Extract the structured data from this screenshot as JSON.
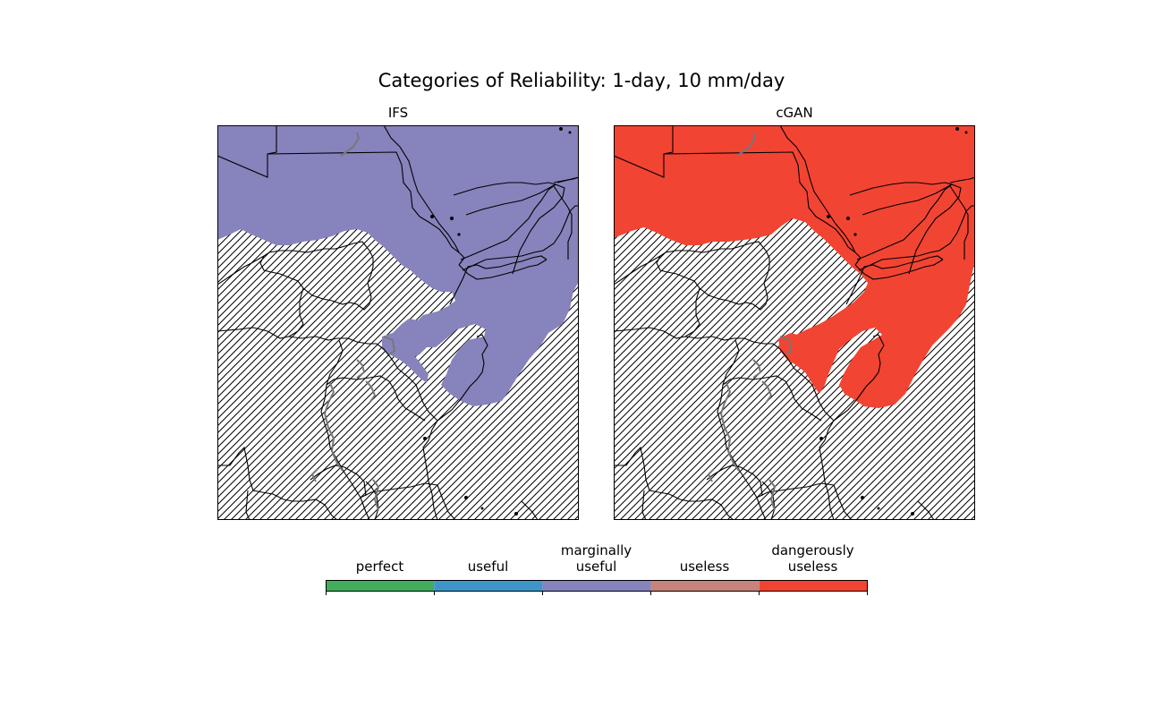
{
  "figure": {
    "title": "Categories of Reliability: 1-day, 10 mm/day"
  },
  "panels": [
    {
      "title": "IFS",
      "fill_color": "#8783bc"
    },
    {
      "title": "cGAN",
      "fill_color": "#f24433"
    }
  ],
  "legend": {
    "categories": [
      {
        "label": "perfect",
        "color": "#42ac5c"
      },
      {
        "label": "useful",
        "color": "#3e96c8"
      },
      {
        "label": "marginally\nuseful",
        "color": "#8783bc"
      },
      {
        "label": "useless",
        "color": "#c5837b"
      },
      {
        "label": "dangerously\nuseless",
        "color": "#f24433"
      }
    ],
    "hatch_meaning": "no data hatched area"
  }
}
